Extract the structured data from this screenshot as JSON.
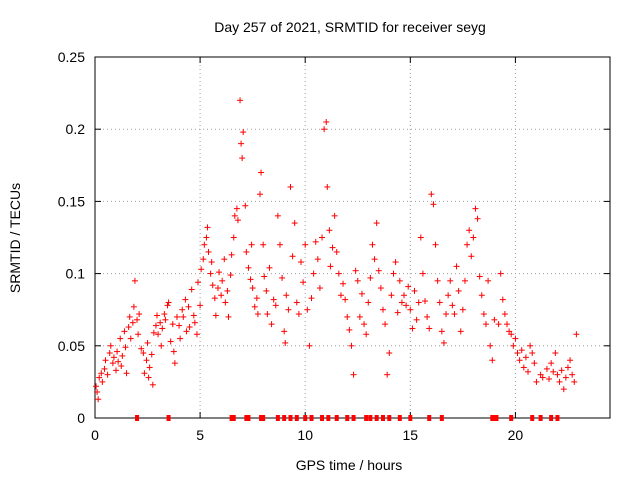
{
  "chart_data": {
    "type": "scatter",
    "title": "Day 257 of 2021, SRMTID for receiver seyg",
    "xlabel": "GPS time / hours",
    "ylabel": "SRMTID / TECUs",
    "xlim": [
      0,
      24.5
    ],
    "ylim": [
      0,
      0.25
    ],
    "x_ticks": [
      0,
      5,
      10,
      15,
      20
    ],
    "x_tick_labels": [
      "0",
      "5",
      "10",
      "15",
      "20"
    ],
    "y_ticks": [
      0,
      0.05,
      0.1,
      0.15,
      0.2,
      0.25
    ],
    "y_tick_labels": [
      "0",
      "0.05",
      "0.1",
      "0.15",
      "0.2",
      "0.25"
    ],
    "grid": true,
    "marker": "+",
    "color": "#ff0000",
    "series": [
      {
        "name": "SRMTID",
        "points": [
          [
            0.05,
            0.022
          ],
          [
            0.1,
            0.018
          ],
          [
            0.15,
            0.013
          ],
          [
            0.2,
            0.028
          ],
          [
            0.3,
            0.031
          ],
          [
            0.35,
            0.025
          ],
          [
            0.45,
            0.034
          ],
          [
            0.5,
            0.04
          ],
          [
            0.6,
            0.03
          ],
          [
            0.7,
            0.045
          ],
          [
            0.75,
            0.05
          ],
          [
            0.85,
            0.038
          ],
          [
            0.9,
            0.042
          ],
          [
            1.0,
            0.033
          ],
          [
            1.05,
            0.046
          ],
          [
            1.1,
            0.039
          ],
          [
            1.2,
            0.055
          ],
          [
            1.25,
            0.036
          ],
          [
            1.3,
            0.043
          ],
          [
            1.4,
            0.06
          ],
          [
            1.45,
            0.049
          ],
          [
            1.5,
            0.031
          ],
          [
            1.6,
            0.063
          ],
          [
            1.65,
            0.07
          ],
          [
            1.7,
            0.055
          ],
          [
            1.8,
            0.066
          ],
          [
            1.85,
            0.077
          ],
          [
            1.9,
            0.095
          ],
          [
            2.0,
            0.068
          ],
          [
            2.05,
            0.058
          ],
          [
            2.1,
            0.072
          ],
          [
            2.2,
            0.048
          ],
          [
            2.3,
            0.045
          ],
          [
            2.35,
            0.031
          ],
          [
            2.45,
            0.04
          ],
          [
            2.5,
            0.052
          ],
          [
            2.55,
            0.028
          ],
          [
            2.6,
            0.035
          ],
          [
            2.7,
            0.044
          ],
          [
            2.75,
            0.023
          ],
          [
            2.8,
            0.059
          ],
          [
            2.9,
            0.064
          ],
          [
            2.95,
            0.071
          ],
          [
            3.0,
            0.058
          ],
          [
            3.1,
            0.066
          ],
          [
            3.15,
            0.05
          ],
          [
            3.2,
            0.062
          ],
          [
            3.3,
            0.072
          ],
          [
            3.35,
            0.068
          ],
          [
            3.45,
            0.078
          ],
          [
            3.5,
            0.08
          ],
          [
            3.6,
            0.053
          ],
          [
            3.7,
            0.065
          ],
          [
            3.75,
            0.046
          ],
          [
            3.8,
            0.038
          ],
          [
            3.9,
            0.07
          ],
          [
            4.0,
            0.064
          ],
          [
            4.05,
            0.055
          ],
          [
            4.15,
            0.075
          ],
          [
            4.2,
            0.07
          ],
          [
            4.3,
            0.082
          ],
          [
            4.35,
            0.06
          ],
          [
            4.45,
            0.077
          ],
          [
            4.5,
            0.063
          ],
          [
            4.6,
            0.089
          ],
          [
            4.7,
            0.071
          ],
          [
            4.75,
            0.066
          ],
          [
            4.85,
            0.058
          ],
          [
            4.9,
            0.094
          ],
          [
            5.0,
            0.078
          ],
          [
            5.05,
            0.103
          ],
          [
            5.15,
            0.11
          ],
          [
            5.2,
            0.12
          ],
          [
            5.3,
            0.125
          ],
          [
            5.35,
            0.132
          ],
          [
            5.4,
            0.115
          ],
          [
            5.5,
            0.1
          ],
          [
            5.55,
            0.108
          ],
          [
            5.6,
            0.092
          ],
          [
            5.7,
            0.083
          ],
          [
            5.75,
            0.071
          ],
          [
            5.85,
            0.09
          ],
          [
            5.9,
            0.101
          ],
          [
            6.0,
            0.085
          ],
          [
            6.05,
            0.095
          ],
          [
            6.15,
            0.11
          ],
          [
            6.2,
            0.08
          ],
          [
            6.3,
            0.088
          ],
          [
            6.35,
            0.07
          ],
          [
            6.45,
            0.099
          ],
          [
            6.5,
            0.113
          ],
          [
            6.6,
            0.125
          ],
          [
            6.65,
            0.14
          ],
          [
            6.75,
            0.145
          ],
          [
            6.8,
            0.137
          ],
          [
            6.9,
            0.22
          ],
          [
            6.95,
            0.19
          ],
          [
            7.0,
            0.18
          ],
          [
            7.05,
            0.198
          ],
          [
            7.15,
            0.147
          ],
          [
            7.2,
            0.115
          ],
          [
            7.3,
            0.104
          ],
          [
            7.4,
            0.096
          ],
          [
            7.45,
            0.12
          ],
          [
            7.5,
            0.09
          ],
          [
            7.6,
            0.077
          ],
          [
            7.7,
            0.083
          ],
          [
            7.75,
            0.072
          ],
          [
            7.85,
            0.155
          ],
          [
            7.9,
            0.17
          ],
          [
            8.0,
            0.12
          ],
          [
            8.05,
            0.098
          ],
          [
            8.15,
            0.088
          ],
          [
            8.2,
            0.072
          ],
          [
            8.3,
            0.104
          ],
          [
            8.4,
            0.065
          ],
          [
            8.5,
            0.082
          ],
          [
            8.6,
            0.078
          ],
          [
            8.7,
            0.14
          ],
          [
            8.8,
            0.12
          ],
          [
            8.9,
            0.097
          ],
          [
            9.0,
            0.06
          ],
          [
            9.05,
            0.052
          ],
          [
            9.1,
            0.085
          ],
          [
            9.2,
            0.075
          ],
          [
            9.3,
            0.16
          ],
          [
            9.4,
            0.112
          ],
          [
            9.5,
            0.135
          ],
          [
            9.6,
            0.08
          ],
          [
            9.7,
            0.072
          ],
          [
            9.8,
            0.108
          ],
          [
            9.9,
            0.094
          ],
          [
            10.0,
            0.12
          ],
          [
            10.1,
            0.075
          ],
          [
            10.2,
            0.05
          ],
          [
            10.3,
            0.083
          ],
          [
            10.4,
            0.1
          ],
          [
            10.5,
            0.122
          ],
          [
            10.6,
            0.11
          ],
          [
            10.7,
            0.09
          ],
          [
            10.8,
            0.125
          ],
          [
            10.9,
            0.2
          ],
          [
            11.0,
            0.205
          ],
          [
            11.05,
            0.16
          ],
          [
            11.15,
            0.13
          ],
          [
            11.2,
            0.105
          ],
          [
            11.3,
            0.118
          ],
          [
            11.4,
            0.14
          ],
          [
            11.5,
            0.115
          ],
          [
            11.6,
            0.1
          ],
          [
            11.7,
            0.085
          ],
          [
            11.8,
            0.093
          ],
          [
            11.9,
            0.082
          ],
          [
            12.0,
            0.07
          ],
          [
            12.1,
            0.061
          ],
          [
            12.2,
            0.05
          ],
          [
            12.3,
            0.03
          ],
          [
            12.4,
            0.102
          ],
          [
            12.5,
            0.095
          ],
          [
            12.6,
            0.07
          ],
          [
            12.7,
            0.086
          ],
          [
            12.8,
            0.065
          ],
          [
            12.9,
            0.058
          ],
          [
            13.0,
            0.08
          ],
          [
            13.1,
            0.097
          ],
          [
            13.2,
            0.12
          ],
          [
            13.3,
            0.11
          ],
          [
            13.4,
            0.135
          ],
          [
            13.5,
            0.102
          ],
          [
            13.6,
            0.09
          ],
          [
            13.7,
            0.075
          ],
          [
            13.8,
            0.065
          ],
          [
            13.9,
            0.03
          ],
          [
            14.0,
            0.045
          ],
          [
            14.1,
            0.085
          ],
          [
            14.2,
            0.1
          ],
          [
            14.3,
            0.108
          ],
          [
            14.4,
            0.073
          ],
          [
            14.5,
            0.095
          ],
          [
            14.6,
            0.08
          ],
          [
            14.7,
            0.085
          ],
          [
            14.8,
            0.078
          ],
          [
            14.9,
            0.091
          ],
          [
            15.0,
            0.075
          ],
          [
            15.1,
            0.062
          ],
          [
            15.2,
            0.088
          ],
          [
            15.3,
            0.068
          ],
          [
            15.4,
            0.08
          ],
          [
            15.5,
            0.125
          ],
          [
            15.6,
            0.1
          ],
          [
            15.7,
            0.081
          ],
          [
            15.8,
            0.07
          ],
          [
            15.9,
            0.062
          ],
          [
            16.0,
            0.155
          ],
          [
            16.1,
            0.148
          ],
          [
            16.2,
            0.12
          ],
          [
            16.3,
            0.095
          ],
          [
            16.4,
            0.08
          ],
          [
            16.5,
            0.06
          ],
          [
            16.6,
            0.052
          ],
          [
            16.7,
            0.072
          ],
          [
            16.8,
            0.085
          ],
          [
            16.9,
            0.095
          ],
          [
            17.0,
            0.078
          ],
          [
            17.1,
            0.072
          ],
          [
            17.2,
            0.105
          ],
          [
            17.3,
            0.088
          ],
          [
            17.4,
            0.06
          ],
          [
            17.5,
            0.075
          ],
          [
            17.6,
            0.095
          ],
          [
            17.7,
            0.12
          ],
          [
            17.8,
            0.13
          ],
          [
            17.9,
            0.112
          ],
          [
            18.0,
            0.125
          ],
          [
            18.1,
            0.145
          ],
          [
            18.2,
            0.138
          ],
          [
            18.3,
            0.098
          ],
          [
            18.4,
            0.085
          ],
          [
            18.5,
            0.072
          ],
          [
            18.6,
            0.065
          ],
          [
            18.7,
            0.095
          ],
          [
            18.8,
            0.05
          ],
          [
            18.9,
            0.04
          ],
          [
            19.0,
            0.068
          ],
          [
            19.2,
            0.065
          ],
          [
            19.3,
            0.1
          ],
          [
            19.4,
            0.082
          ],
          [
            19.5,
            0.072
          ],
          [
            19.6,
            0.065
          ],
          [
            19.7,
            0.06
          ],
          [
            19.8,
            0.058
          ],
          [
            19.9,
            0.05
          ],
          [
            20.0,
            0.055
          ],
          [
            20.1,
            0.045
          ],
          [
            20.2,
            0.04
          ],
          [
            20.3,
            0.047
          ],
          [
            20.4,
            0.035
          ],
          [
            20.5,
            0.042
          ],
          [
            20.6,
            0.032
          ],
          [
            20.7,
            0.05
          ],
          [
            20.8,
            0.045
          ],
          [
            20.9,
            0.038
          ],
          [
            21.0,
            0.025
          ],
          [
            21.2,
            0.03
          ],
          [
            21.3,
            0.028
          ],
          [
            21.5,
            0.034
          ],
          [
            21.6,
            0.027
          ],
          [
            21.7,
            0.038
          ],
          [
            21.8,
            0.032
          ],
          [
            21.9,
            0.045
          ],
          [
            22.0,
            0.03
          ],
          [
            22.1,
            0.025
          ],
          [
            22.2,
            0.033
          ],
          [
            22.3,
            0.02
          ],
          [
            22.4,
            0.028
          ],
          [
            22.5,
            0.035
          ],
          [
            22.6,
            0.04
          ],
          [
            22.7,
            0.03
          ],
          [
            22.8,
            0.025
          ],
          [
            22.9,
            0.058
          ]
        ]
      }
    ],
    "baseline_marks": {
      "description": "data gaps flagged at zero",
      "x": [
        2.0,
        3.5,
        6.5,
        6.6,
        7.2,
        7.3,
        7.9,
        8.0,
        8.7,
        9.0,
        9.3,
        9.6,
        10.0,
        10.3,
        10.8,
        11.1,
        11.5,
        12.0,
        12.3,
        12.9,
        13.1,
        13.4,
        13.7,
        14.0,
        14.5,
        15.0,
        15.9,
        16.5,
        18.9,
        19.0,
        19.1,
        19.8,
        20.8,
        21.2,
        21.7,
        22.0
      ]
    }
  }
}
